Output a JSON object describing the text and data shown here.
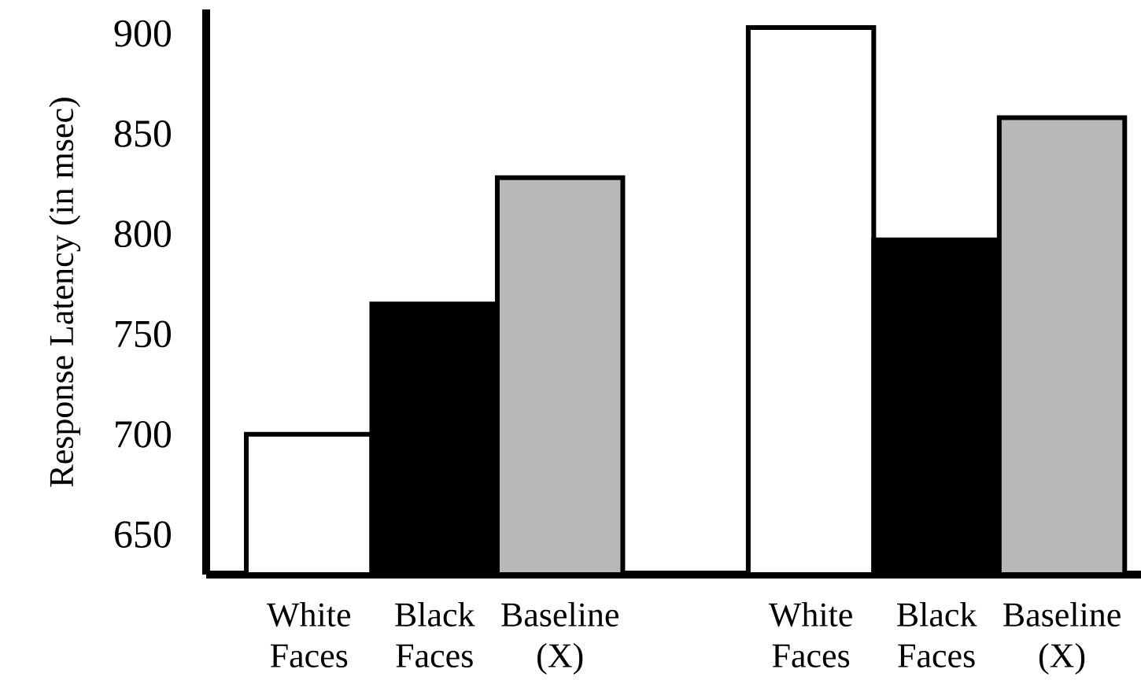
{
  "chart_data": {
    "type": "bar",
    "ylabel": "Response Latency (in msec)",
    "categories": [
      "White Faces",
      "Black Faces",
      "Baseline (X)",
      null,
      "White Faces",
      "Black Faces",
      "Baseline (X)"
    ],
    "values": [
      700,
      765,
      828,
      null,
      903,
      797,
      858
    ],
    "colors": [
      "#ffffff",
      "#000000",
      "#b8b8b8",
      null,
      "#ffffff",
      "#000000",
      "#b8b8b8"
    ],
    "ylim": [
      630,
      912
    ],
    "yticks": [
      650,
      700,
      750,
      800,
      850,
      900
    ]
  }
}
